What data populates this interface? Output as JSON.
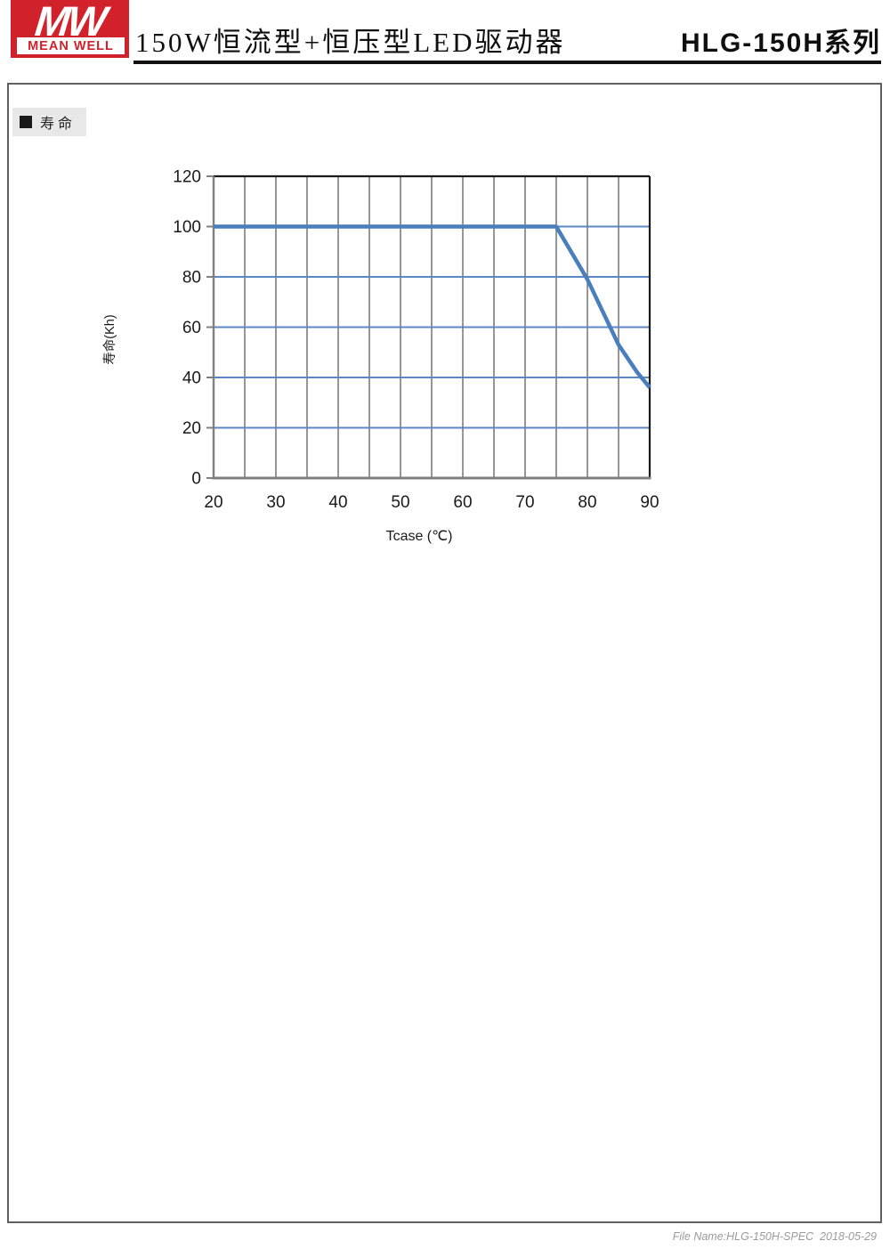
{
  "header": {
    "logo_mw": "MW",
    "logo_brand": "MEAN WELL",
    "title": "150W恒流型+恒压型LED驱动器",
    "series_title": "HLG-150H系列"
  },
  "section": {
    "label": "寿命"
  },
  "footer": {
    "text": "File Name:HLG-150H-SPEC  2018-05-29"
  },
  "chart_data": {
    "type": "line",
    "title": "",
    "xlabel": "Tcase (℃)",
    "ylabel": "寿命(Kh)",
    "xlim": [
      20,
      90
    ],
    "ylim": [
      0,
      120
    ],
    "xticks": [
      20,
      30,
      40,
      50,
      60,
      70,
      80,
      90
    ],
    "yticks": [
      0,
      20,
      40,
      60,
      80,
      100,
      120
    ],
    "x_minor_step": 5,
    "grid": true,
    "legend_position": "none",
    "series": [
      {
        "name": "寿命",
        "x": [
          20,
          75,
          80,
          85,
          88,
          90
        ],
        "y": [
          100,
          100,
          79,
          53,
          42,
          36
        ]
      }
    ],
    "colors": {
      "line": "#4A7EBC",
      "h_gridline": "#5B87C4",
      "v_gridline": "#8A8A8A",
      "axis": "#808080",
      "frame": "#1A1A1A",
      "logo_red": "#D1212B"
    }
  }
}
